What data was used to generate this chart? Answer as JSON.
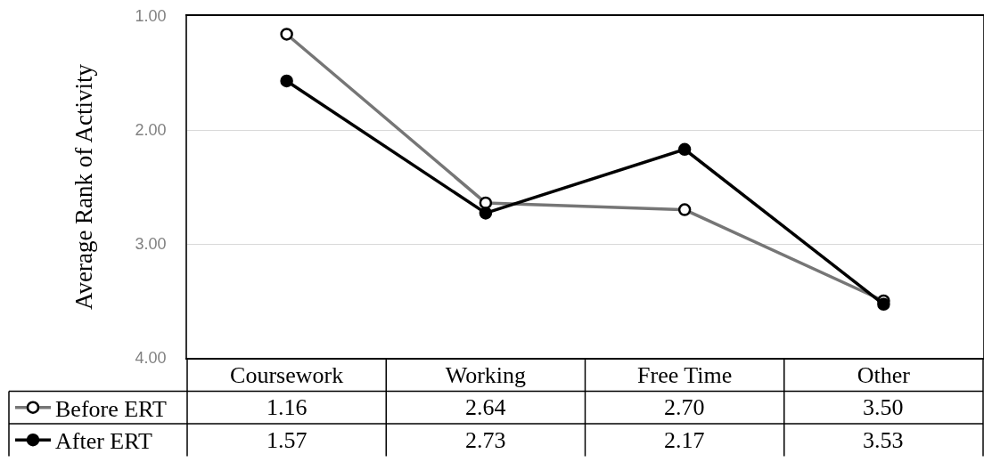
{
  "chart_data": {
    "type": "line",
    "ylabel": "Average Rank of Activity",
    "categories": [
      "Coursework",
      "Working",
      "Free Time",
      "Other"
    ],
    "series": [
      {
        "name": "Before ERT",
        "color": "#767676",
        "marker": "circle-open",
        "values": [
          1.16,
          2.64,
          2.7,
          3.5
        ],
        "value_labels": [
          "1.16",
          "2.64",
          "2.70",
          "3.50"
        ]
      },
      {
        "name": "After ERT",
        "color": "#000000",
        "marker": "circle",
        "values": [
          1.57,
          2.73,
          2.17,
          3.53
        ],
        "value_labels": [
          "1.57",
          "2.73",
          "2.17",
          "3.53"
        ]
      }
    ],
    "ylim": [
      4,
      1
    ],
    "yticks": [
      {
        "value": 1,
        "label": "1.00"
      },
      {
        "value": 2,
        "label": "2.00"
      },
      {
        "value": 3,
        "label": "3.00"
      },
      {
        "value": 4,
        "label": "4.00"
      }
    ],
    "grid": "y",
    "legend": "bottom left",
    "line_style": "solid"
  }
}
